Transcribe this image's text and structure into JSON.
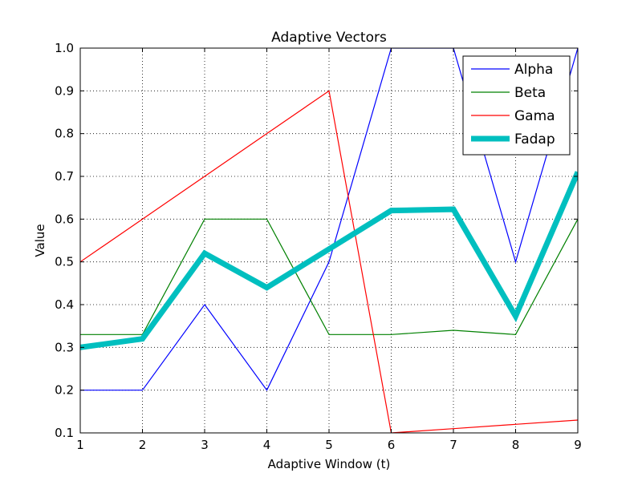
{
  "chart_data": {
    "type": "line",
    "title": "Adaptive Vectors",
    "xlabel": "Adaptive Window (t)",
    "ylabel": "Value",
    "xlim": [
      1,
      9
    ],
    "ylim": [
      0.1,
      1.0
    ],
    "x": [
      1,
      2,
      3,
      4,
      5,
      6,
      7,
      8,
      9
    ],
    "x_ticks": [
      "1",
      "2",
      "3",
      "4",
      "5",
      "6",
      "7",
      "8",
      "9"
    ],
    "y_tick_values": [
      0.1,
      0.2,
      0.3,
      0.4,
      0.5,
      0.6,
      0.7,
      0.8,
      0.9,
      1.0
    ],
    "y_ticks": [
      "0.1",
      "0.2",
      "0.3",
      "0.4",
      "0.5",
      "0.6",
      "0.7",
      "0.8",
      "0.9",
      "1.0"
    ],
    "grid": true,
    "legend_position": "top-right",
    "series": [
      {
        "name": "Alpha",
        "color": "#0000ff",
        "values": [
          0.2,
          0.2,
          0.4,
          0.2,
          0.5,
          1.0,
          1.0,
          0.5,
          1.0
        ]
      },
      {
        "name": "Beta",
        "color": "#008000",
        "values": [
          0.33,
          0.33,
          0.6,
          0.6,
          0.33,
          0.33,
          0.34,
          0.33,
          0.6
        ]
      },
      {
        "name": "Gama",
        "color": "#ff0000",
        "values": [
          0.5,
          0.6,
          0.7,
          0.8,
          0.9,
          0.1,
          0.11,
          0.12,
          0.13
        ]
      },
      {
        "name": "Fadap",
        "color": "#00bfbf",
        "thick": true,
        "values": [
          0.3,
          0.32,
          0.52,
          0.44,
          0.53,
          0.62,
          0.623,
          0.373,
          0.71
        ]
      }
    ]
  }
}
